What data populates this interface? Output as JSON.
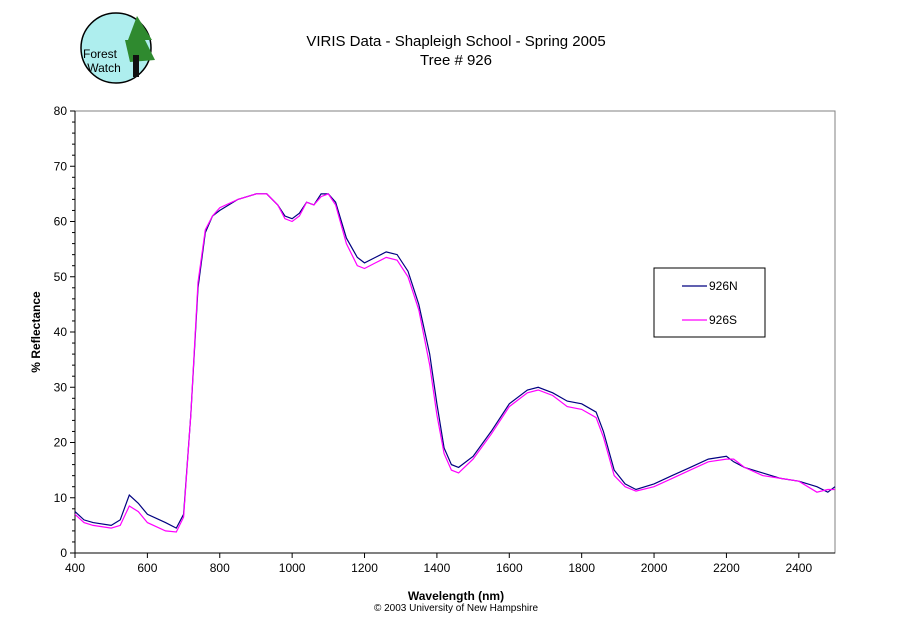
{
  "logo": {
    "text_line1": "Forest",
    "text_line2": "Watch"
  },
  "copyright": "© 2003 University of New Hampshire",
  "chart_data": {
    "type": "line",
    "title": "VIRIS Data - Shapleigh School - Spring 2005",
    "subtitle": "Tree # 926",
    "xlabel": "Wavelength (nm)",
    "ylabel": "% Reflectance",
    "xlim": [
      400,
      2500
    ],
    "ylim": [
      0,
      80
    ],
    "xticks": [
      400,
      600,
      800,
      1000,
      1200,
      1400,
      1600,
      1800,
      2000,
      2200,
      2400
    ],
    "yticks": [
      0,
      10,
      20,
      30,
      40,
      50,
      60,
      70,
      80
    ],
    "grid": false,
    "legend_placement": "right",
    "x": [
      400,
      425,
      450,
      500,
      525,
      550,
      575,
      600,
      650,
      680,
      700,
      720,
      740,
      760,
      780,
      800,
      850,
      900,
      930,
      960,
      980,
      1000,
      1020,
      1040,
      1060,
      1080,
      1100,
      1120,
      1150,
      1180,
      1200,
      1230,
      1260,
      1290,
      1320,
      1350,
      1380,
      1400,
      1420,
      1440,
      1460,
      1500,
      1550,
      1600,
      1650,
      1680,
      1720,
      1760,
      1800,
      1840,
      1860,
      1890,
      1920,
      1950,
      2000,
      2050,
      2100,
      2150,
      2200,
      2220,
      2250,
      2300,
      2350,
      2400,
      2450,
      2480,
      2500
    ],
    "series": [
      {
        "name": "926N",
        "color": "#000080",
        "values": [
          7.5,
          6,
          5.5,
          5,
          6,
          10.5,
          9,
          7,
          5.5,
          4.5,
          7,
          25,
          48,
          58,
          61,
          62,
          64,
          65,
          65,
          63,
          61,
          60.5,
          61.5,
          63.5,
          63,
          65,
          65,
          63.5,
          57,
          53.5,
          52.5,
          53.5,
          54.5,
          54,
          51,
          45,
          36,
          27,
          19,
          16,
          15.5,
          17.5,
          22,
          27,
          29.5,
          30,
          29,
          27.5,
          27,
          25.5,
          22,
          15,
          12.5,
          11.5,
          12.5,
          14,
          15.5,
          17,
          17.5,
          16.5,
          15.5,
          14.5,
          13.5,
          13,
          12,
          11,
          12
        ]
      },
      {
        "name": "926S",
        "color": "#ff00ff",
        "values": [
          7,
          5.5,
          5,
          4.5,
          5,
          8.5,
          7.5,
          5.5,
          4,
          3.8,
          6.5,
          25,
          49,
          58.5,
          61,
          62.5,
          64,
          65,
          65,
          63,
          60.5,
          60,
          61,
          63.5,
          63,
          64.5,
          65,
          63,
          56,
          52,
          51.5,
          52.5,
          53.5,
          53,
          50,
          44,
          34,
          25,
          18,
          15,
          14.5,
          17,
          21.5,
          26.5,
          29,
          29.5,
          28.5,
          26.5,
          26,
          24.5,
          21,
          14,
          12,
          11.2,
          12,
          13.5,
          15,
          16.5,
          17,
          17,
          15.5,
          14,
          13.5,
          13,
          11,
          11.5,
          11.5
        ]
      }
    ]
  }
}
